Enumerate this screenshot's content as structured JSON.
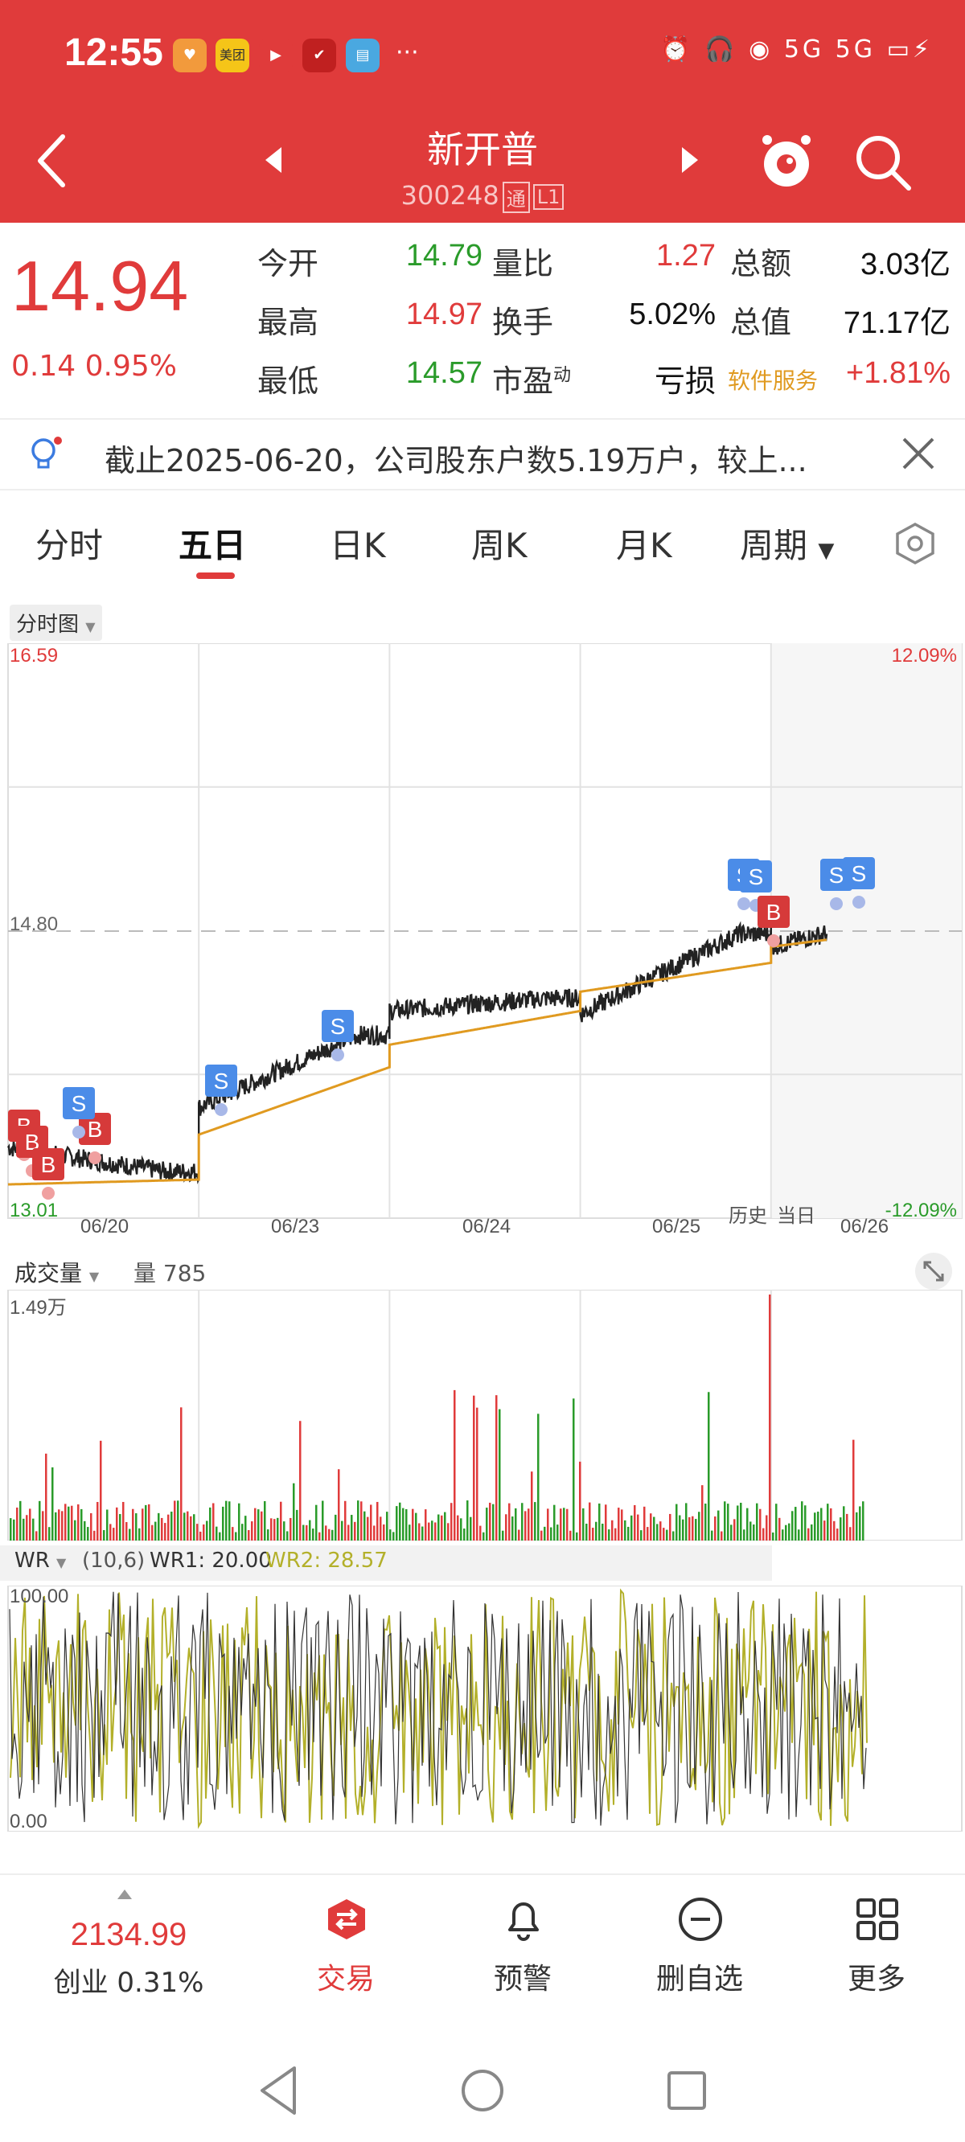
{
  "status_bar": {
    "time": "12:55",
    "app_icons": [
      "heart-app",
      "美团",
      "play-app",
      "bird-app",
      "book-app"
    ],
    "overflow": "···",
    "network": "5G 5G"
  },
  "header": {
    "title": "新开普",
    "code": "300248",
    "tag1": "通",
    "tag2": "L1"
  },
  "quote": {
    "price": "14.94",
    "change": "0.14 0.95%",
    "open_label": "今开",
    "open": "14.79",
    "high_label": "最高",
    "high": "14.97",
    "low_label": "最低",
    "low": "14.57",
    "vol_ratio_label": "量比",
    "vol_ratio": "1.27",
    "turnover_label": "换手",
    "turnover": "5.02%",
    "pe_label": "市盈",
    "pe_sup": "动",
    "pe": "亏损",
    "amount_label": "总额",
    "amount": "3.03亿",
    "mktcap_label": "总值",
    "mktcap": "71.17亿",
    "sector": "软件服务",
    "sector_change": "+1.81%"
  },
  "notice": {
    "text": "截止2025-06-20，公司股东户数5.19万户，较上..."
  },
  "tabs": [
    "分时",
    "五日",
    "日K",
    "周K",
    "月K",
    "周期"
  ],
  "active_tab": 1,
  "chart_labels": {
    "type_select": "分时图",
    "y_top": "16.59",
    "y_mid": "14.80",
    "y_bottom": "13.01",
    "pct_top": "12.09%",
    "pct_bottom": "-12.09%",
    "dates": [
      "06/20",
      "06/23",
      "06/24",
      "06/25",
      "06/26"
    ],
    "history": "历史",
    "today": "当日"
  },
  "volume": {
    "title": "成交量",
    "label": "量 785",
    "max": "1.49万"
  },
  "wr": {
    "title": "WR",
    "params": "(10,6)",
    "wr1": "WR1: 20.00",
    "wr2": "WR2: 28.57",
    "top": "100.00",
    "bottom": "0.00"
  },
  "chart_data": {
    "type": "line",
    "x": [
      "06/20",
      "06/23",
      "06/24",
      "06/25",
      "06/26"
    ],
    "series": [
      {
        "values": [
          13.3,
          14.15,
          14.38,
          14.78,
          14.94
        ]
      },
      {
        "values": [
          13.25,
          13.95,
          14.3,
          14.6,
          14.85
        ]
      }
    ],
    "ylim": [
      13.01,
      16.59
    ],
    "ref": 14.8,
    "trade_markers": [
      "B",
      "B",
      "B",
      "B",
      "S",
      "S",
      "S",
      "S",
      "S",
      "B",
      "S",
      "S"
    ]
  },
  "bottom_nav": {
    "index_value": "2134.99",
    "index_label": "创业 0.31%",
    "items": [
      "交易",
      "预警",
      "删自选",
      "更多"
    ]
  },
  "colors": {
    "brand": "#e03b3b",
    "up": "#e03b3b",
    "down": "#2a9b2a",
    "avg": "#e09a20",
    "wr": "#b3b02a"
  }
}
